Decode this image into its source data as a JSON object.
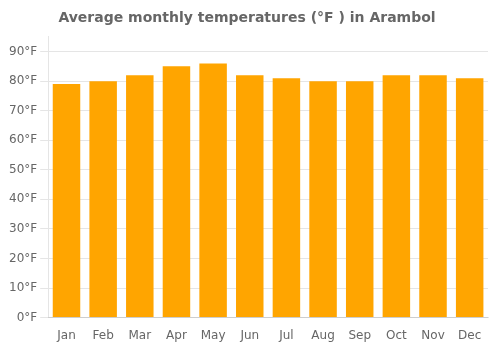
{
  "chart_data": {
    "type": "bar",
    "title": "Average monthly temperatures (°F ) in Arambol",
    "categories": [
      "Jan",
      "Feb",
      "Mar",
      "Apr",
      "May",
      "Jun",
      "Jul",
      "Aug",
      "Sep",
      "Oct",
      "Nov",
      "Dec"
    ],
    "values": [
      79,
      80,
      82,
      85,
      86,
      82,
      81,
      80,
      80,
      82,
      82,
      81
    ],
    "color": "#FFA500",
    "ylim": [
      0,
      95
    ],
    "yticks": [
      {
        "value": 0,
        "label": "0°F"
      },
      {
        "value": 10,
        "label": "10°F"
      },
      {
        "value": 20,
        "label": "20°F"
      },
      {
        "value": 30,
        "label": "30°F"
      },
      {
        "value": 40,
        "label": "40°F"
      },
      {
        "value": 50,
        "label": "50°F"
      },
      {
        "value": 60,
        "label": "60°F"
      },
      {
        "value": 70,
        "label": "70°F"
      },
      {
        "value": 80,
        "label": "80°F"
      },
      {
        "value": 90,
        "label": "90°F"
      }
    ],
    "grid": true
  }
}
